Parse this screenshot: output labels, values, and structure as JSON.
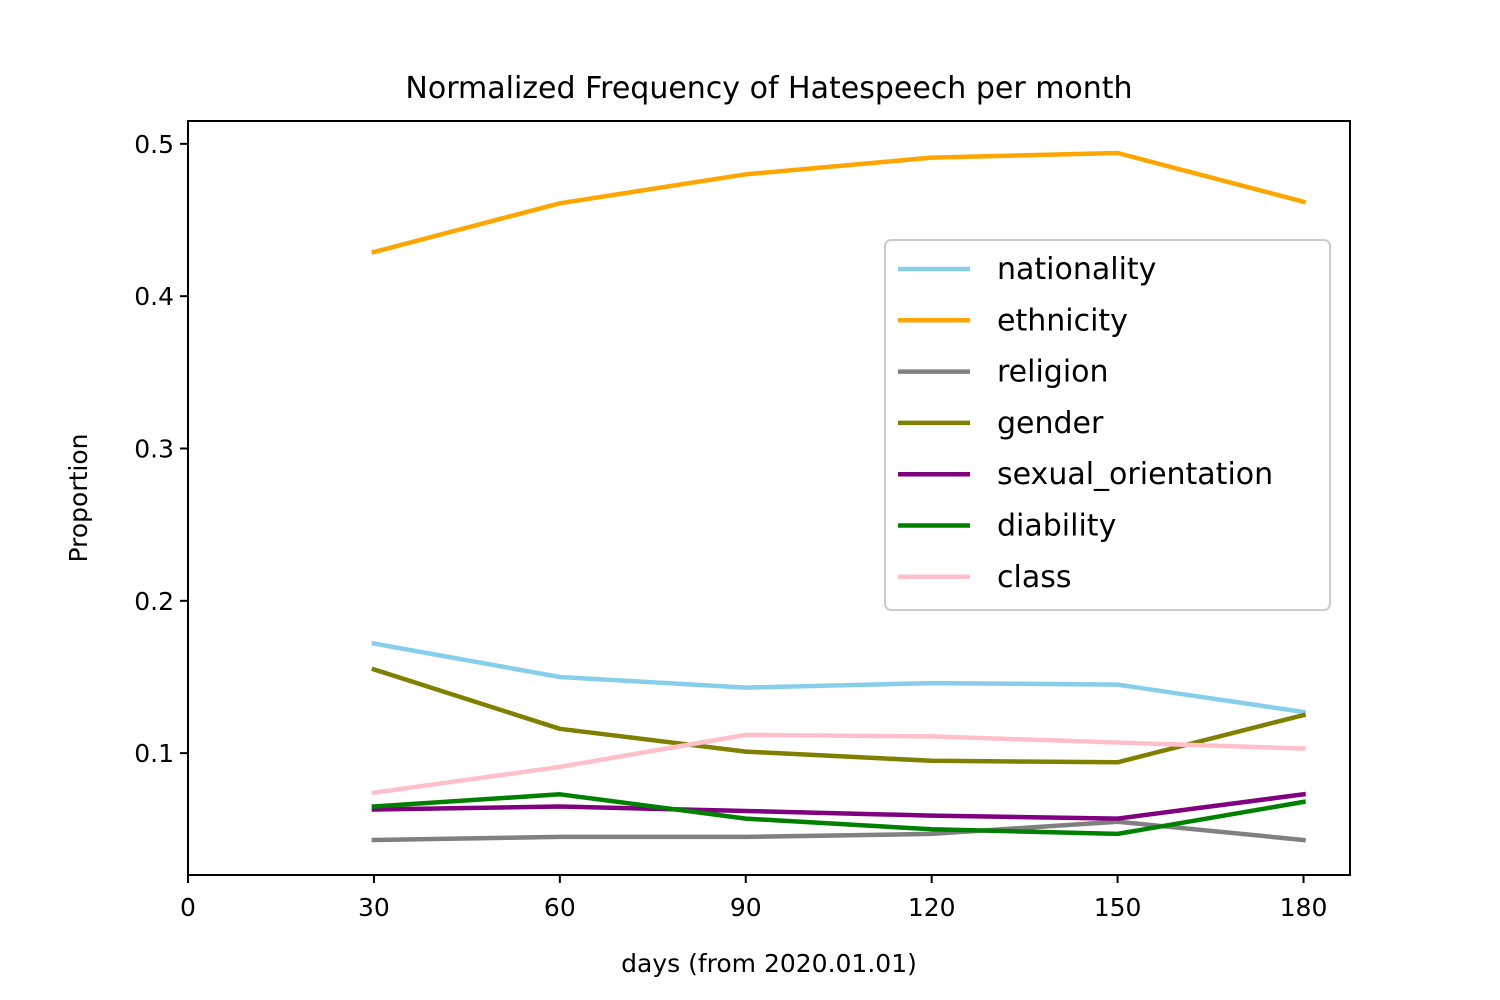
{
  "chart_data": {
    "type": "line",
    "title": "Normalized Frequency of Hatespeech per month",
    "xlabel": "days (from 2020.01.01)",
    "ylabel": "Proportion",
    "xlim": [
      0,
      187.5
    ],
    "ylim": [
      0.02,
      0.515
    ],
    "xticks": [
      0,
      30,
      60,
      90,
      120,
      150,
      180
    ],
    "xtick_labels": [
      "0",
      "30",
      "60",
      "90",
      "120",
      "150",
      "180"
    ],
    "yticks": [
      0.1,
      0.2,
      0.3,
      0.4,
      0.5
    ],
    "ytick_labels": [
      "0.1",
      "0.2",
      "0.3",
      "0.4",
      "0.5"
    ],
    "grid": false,
    "legend_position": "center-right",
    "x": [
      30,
      60,
      90,
      120,
      150,
      180
    ],
    "series": [
      {
        "name": "nationality",
        "color": "#87CEEB",
        "values": [
          0.172,
          0.15,
          0.143,
          0.146,
          0.145,
          0.127
        ]
      },
      {
        "name": "ethnicity",
        "color": "#FFA500",
        "values": [
          0.429,
          0.461,
          0.48,
          0.491,
          0.494,
          0.462
        ]
      },
      {
        "name": "religion",
        "color": "#808080",
        "values": [
          0.043,
          0.045,
          0.045,
          0.047,
          0.055,
          0.043
        ]
      },
      {
        "name": "gender",
        "color": "#808000",
        "values": [
          0.155,
          0.116,
          0.101,
          0.095,
          0.094,
          0.125
        ]
      },
      {
        "name": "sexual_orientation",
        "color": "#800080",
        "values": [
          0.063,
          0.065,
          0.062,
          0.059,
          0.057,
          0.073
        ]
      },
      {
        "name": "diability",
        "color": "#008000",
        "values": [
          0.065,
          0.073,
          0.057,
          0.05,
          0.047,
          0.068
        ]
      },
      {
        "name": "class",
        "color": "#FFC0CB",
        "values": [
          0.074,
          0.091,
          0.112,
          0.111,
          0.107,
          0.103
        ]
      }
    ]
  }
}
